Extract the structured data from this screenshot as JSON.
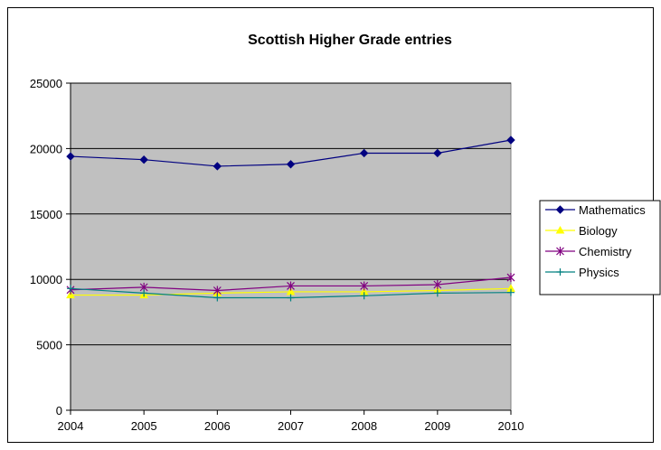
{
  "chart_data": {
    "type": "line",
    "title": "Scottish Higher Grade entries",
    "xlabel": "",
    "ylabel": "",
    "x": [
      "2004",
      "2005",
      "2006",
      "2007",
      "2008",
      "2009",
      "2010"
    ],
    "ylim": [
      0,
      25000
    ],
    "yticks": [
      0,
      5000,
      10000,
      15000,
      20000,
      25000
    ],
    "grid": true,
    "plot_background": "#C0C0C0",
    "legend_position": "right",
    "series": [
      {
        "name": "Mathematics",
        "color": "#000080",
        "marker": "diamond",
        "values": [
          19400,
          19150,
          18650,
          18800,
          19650,
          19650,
          20650
        ]
      },
      {
        "name": "Biology",
        "color": "#FFFF00",
        "marker": "triangle",
        "values": [
          8800,
          8800,
          8950,
          9050,
          9050,
          9150,
          9300
        ]
      },
      {
        "name": "Chemistry",
        "color": "#800080",
        "marker": "star",
        "values": [
          9200,
          9400,
          9150,
          9500,
          9500,
          9600,
          10150
        ]
      },
      {
        "name": "Physics",
        "color": "#008080",
        "marker": "plus",
        "values": [
          9300,
          8950,
          8600,
          8600,
          8750,
          8950,
          9000
        ]
      }
    ]
  }
}
